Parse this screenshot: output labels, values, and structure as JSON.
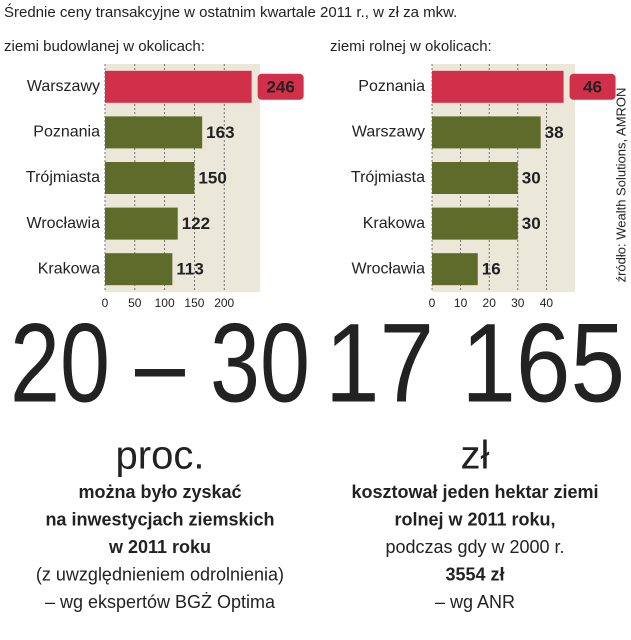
{
  "title": "Średnie ceny transakcyjne w ostatnim kwartale 2011 r., w zł za mkw.",
  "source": "źródło: Wealth Solutions, AMRON",
  "chart_data": [
    {
      "type": "hbar",
      "title": "ziemi budowlanej w okolicach:",
      "categories": [
        "Warszawy",
        "Poznania",
        "Trójmiasta",
        "Wrocławia",
        "Krakowa"
      ],
      "values": [
        246,
        163,
        150,
        122,
        113
      ],
      "color": "#5f6b2a",
      "highlight_color": "#d2304a",
      "highlight": 0,
      "xlim": [
        0,
        260
      ],
      "xticks": [
        0,
        50,
        100,
        150,
        200
      ],
      "grid": true
    },
    {
      "type": "hbar",
      "title": "ziemi rolnej w okolicach:",
      "categories": [
        "Poznania",
        "Warszawy",
        "Trójmiasta",
        "Krakowa",
        "Wrocławia"
      ],
      "values": [
        46,
        38,
        30,
        30,
        16
      ],
      "color": "#5f6b2a",
      "highlight_color": "#d2304a",
      "highlight": 0,
      "xlim": [
        0,
        50
      ],
      "xticks": [
        0,
        10,
        20,
        30,
        40
      ],
      "grid": true
    }
  ],
  "stats": [
    {
      "number": "20 – 30",
      "unit": "proc.",
      "lines": [
        {
          "text": "można było zyskać",
          "style": "bold"
        },
        {
          "text": "na inwestycjach ziemskich",
          "style": "bold"
        },
        {
          "text": "w 2011 roku",
          "style": "bold"
        },
        {
          "text": "(z uwzględnieniem odrolnienia)",
          "style": "normal"
        },
        {
          "text": "– wg ekspertów BGŻ Optima",
          "style": "normal"
        }
      ]
    },
    {
      "number": "17 165",
      "unit": "zł",
      "lines": [
        {
          "text": "kosztował jeden hektar ziemi",
          "style": "bold"
        },
        {
          "text": "rolnej w 2011 roku,",
          "style": "bold"
        },
        {
          "text": "podczas gdy w 2000 r.",
          "style": "normal"
        },
        {
          "text": "3554 zł",
          "style": "highlight"
        },
        {
          "text": "– wg ANR",
          "style": "normal"
        }
      ]
    }
  ]
}
